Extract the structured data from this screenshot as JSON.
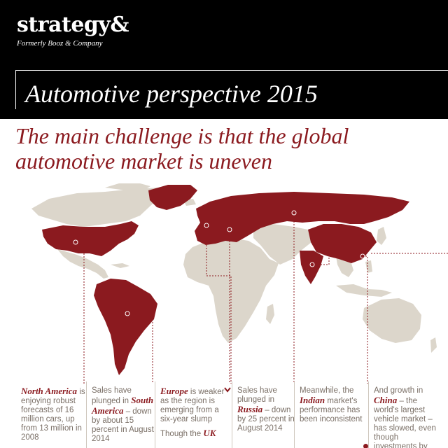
{
  "header": {
    "brand": "strategy&",
    "brand_sub": "Formerly Booz & Company",
    "title": "Automotive perspective 2015"
  },
  "headline": {
    "line1": "The main challenge is that the global",
    "line2": "automotive market is uneven"
  },
  "colors": {
    "accent": "#8b1a1f",
    "land": "#dcd6cb",
    "text_muted": "#7a6f66",
    "header_bg": "#000000"
  },
  "columns": [
    {
      "bold": "North America",
      "text": " is enjoying robust forecasts of 16 million cars, up from 13 million in 2008"
    },
    {
      "pre": "Sales have plunged in ",
      "bold": "South America",
      "text": " – down by about 15 percent in August 2014"
    },
    {
      "bold": "Europe",
      "text": " is weaker as the region is emerging from a six-year slump",
      "pre2": "Though the ",
      "bold2": "UK"
    },
    {
      "pre": "Sales have plunged in ",
      "bold": "Russia",
      "text": " – down by 25 percent in August 2014"
    },
    {
      "pre": "Meanwhile, the ",
      "bold": "Indian",
      "text": " market's performance has been inconsistent"
    },
    {
      "pre": "And growth in ",
      "bold": "China",
      "text": " – the world's largest vehicle market – has slowed, even though investments by"
    }
  ]
}
